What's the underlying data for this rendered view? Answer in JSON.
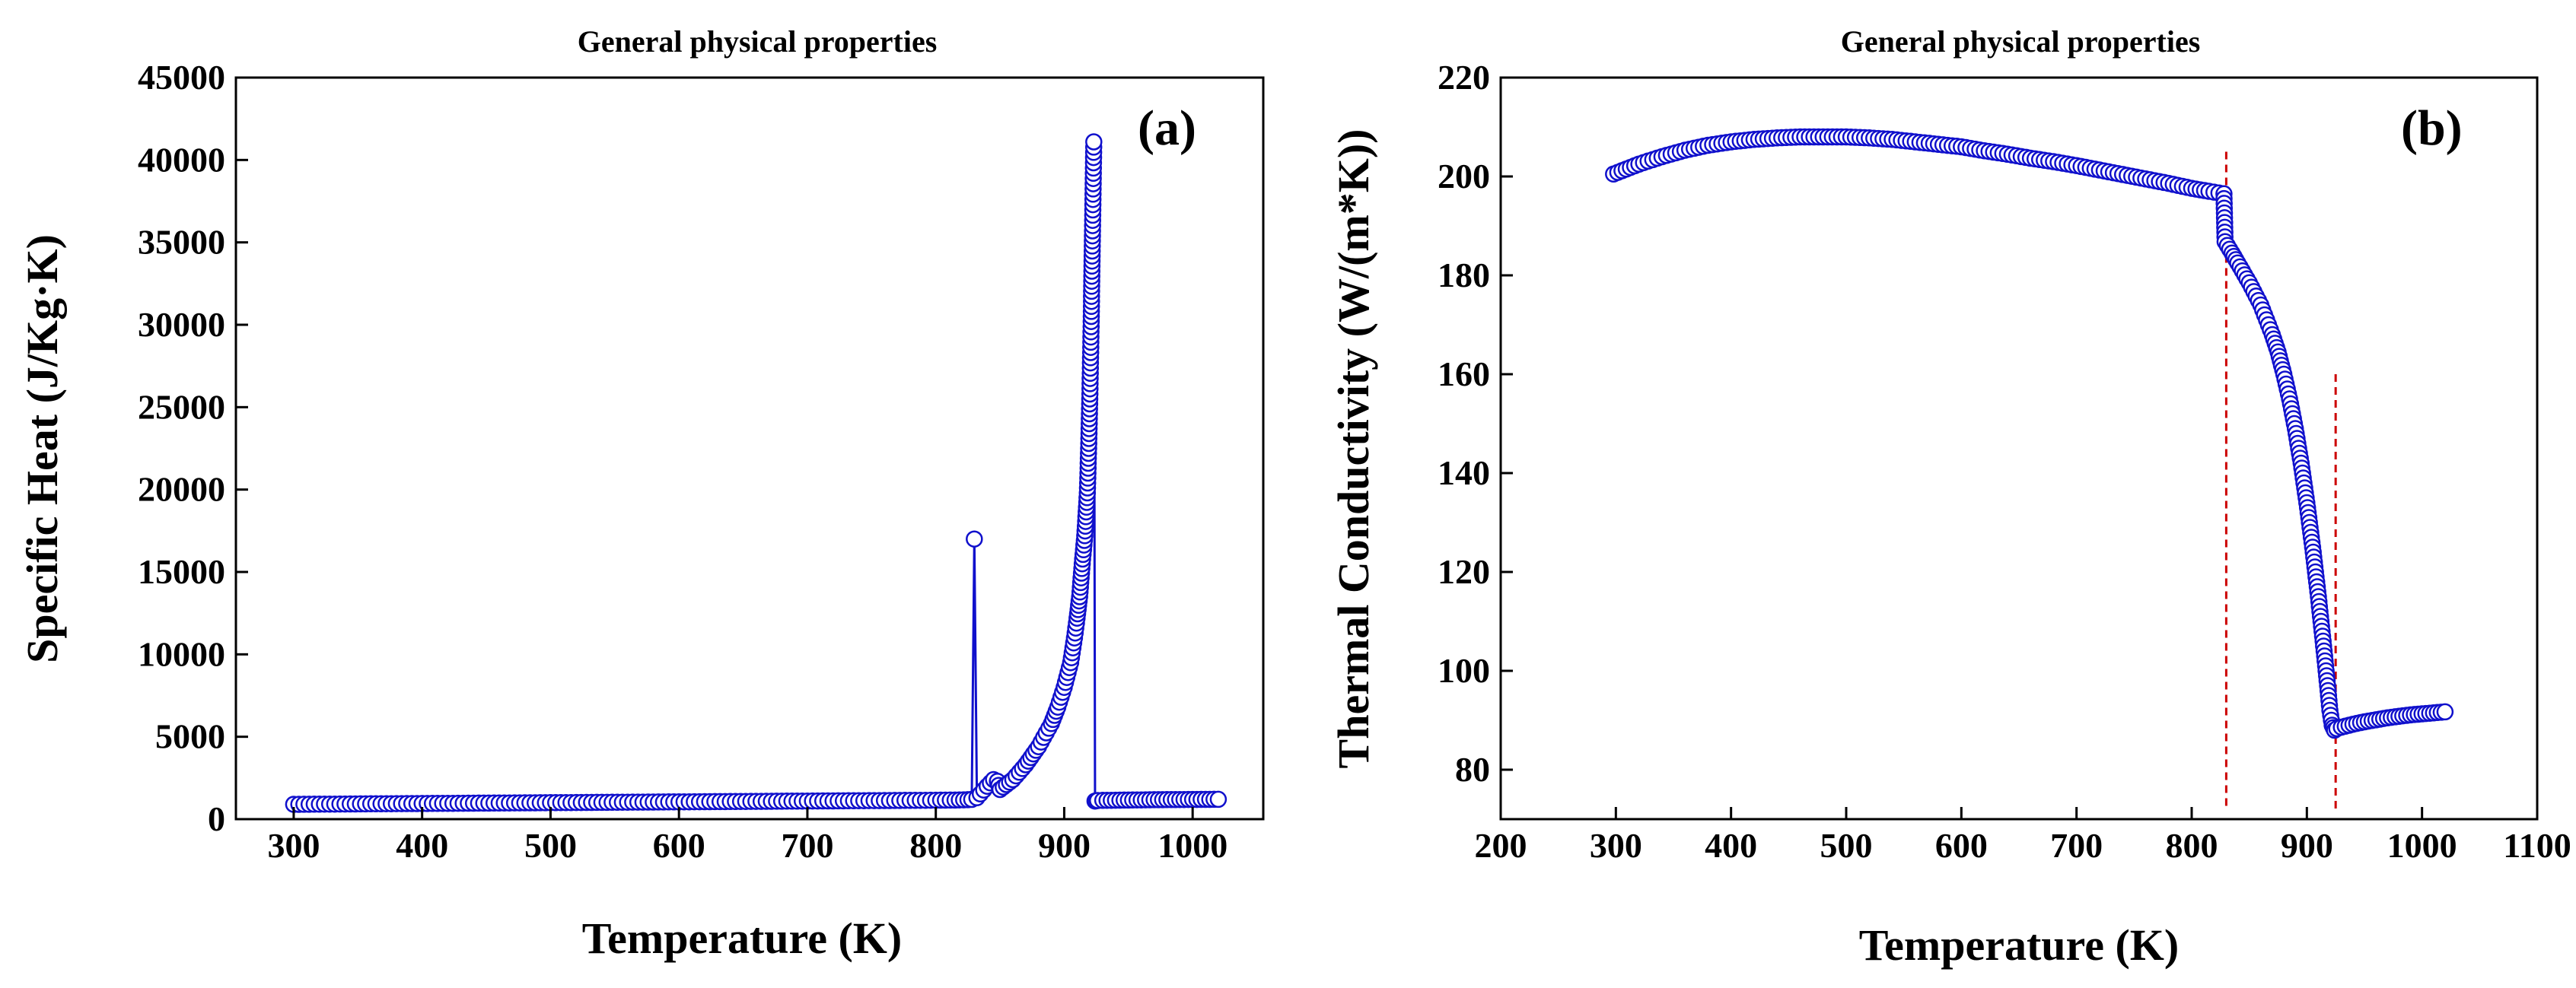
{
  "colors": {
    "series": "#1010cc",
    "dashed_line": "#cc0000",
    "axis": "#000000",
    "background": "#ffffff"
  },
  "chart_data": [
    {
      "type": "line",
      "panel_label": "(a)",
      "title": "General physical properties",
      "xlabel": "Temperature (K)",
      "ylabel": "Specific Heat (J/Kg·K)",
      "xlim": [
        255,
        1055
      ],
      "ylim": [
        0,
        45000
      ],
      "xticks": [
        300,
        400,
        500,
        600,
        700,
        800,
        900,
        1000
      ],
      "yticks": [
        0,
        5000,
        10000,
        15000,
        20000,
        25000,
        30000,
        35000,
        40000,
        45000
      ],
      "series": [
        {
          "name": "Specific heat",
          "marker": "open-circle",
          "x": [
            300,
            320,
            340,
            360,
            380,
            400,
            420,
            440,
            460,
            480,
            500,
            520,
            540,
            560,
            580,
            600,
            620,
            640,
            660,
            680,
            700,
            720,
            740,
            760,
            780,
            800,
            815,
            825,
            828,
            830,
            832,
            840,
            845,
            848,
            850,
            860,
            870,
            880,
            890,
            895,
            900,
            905,
            908,
            910,
            912,
            914,
            916,
            918,
            919,
            920,
            921,
            922,
            923,
            924,
            925,
            926,
            930,
            940,
            950,
            960,
            970,
            980,
            990,
            1000,
            1010,
            1020
          ],
          "values": [
            900,
            910,
            920,
            930,
            940,
            950,
            960,
            970,
            980,
            990,
            1000,
            1010,
            1020,
            1030,
            1040,
            1050,
            1060,
            1070,
            1080,
            1090,
            1100,
            1110,
            1120,
            1130,
            1140,
            1150,
            1160,
            1180,
            1200,
            17000,
            1300,
            2000,
            2400,
            2300,
            1800,
            2400,
            3300,
            4400,
            5800,
            6800,
            8000,
            9500,
            11000,
            12200,
            13500,
            15500,
            17200,
            19800,
            22500,
            25800,
            30200,
            35700,
            41100,
            1100,
            1120,
            1130,
            1140,
            1150,
            1160,
            1170,
            1180,
            1185,
            1190,
            1195,
            1200,
            1205
          ]
        }
      ]
    },
    {
      "type": "line",
      "panel_label": "(b)",
      "title": "General physical properties",
      "xlabel": "Temperature (K)",
      "ylabel": "Thermal Conductivity (W/(m*K))",
      "xlim": [
        200,
        1100
      ],
      "ylim": [
        70,
        220
      ],
      "xticks": [
        200,
        300,
        400,
        500,
        600,
        700,
        800,
        900,
        1000,
        1100
      ],
      "yticks": [
        80,
        100,
        120,
        140,
        160,
        180,
        200,
        220
      ],
      "reference_lines_x": [
        830,
        925
      ],
      "series": [
        {
          "name": "Thermal conductivity",
          "marker": "open-circle",
          "x": [
            298,
            320,
            340,
            360,
            380,
            400,
            420,
            440,
            460,
            480,
            500,
            520,
            540,
            560,
            580,
            600,
            620,
            640,
            660,
            680,
            700,
            720,
            740,
            760,
            780,
            800,
            815,
            828,
            829,
            835,
            840,
            850,
            860,
            870,
            875,
            880,
            885,
            890,
            895,
            900,
            905,
            910,
            915,
            918,
            920,
            922,
            924,
            926,
            930,
            940,
            950,
            960,
            970,
            980,
            990,
            1000,
            1010,
            1020
          ],
          "values": [
            200.5,
            202.5,
            204,
            205.3,
            206.3,
            207,
            207.5,
            207.8,
            208,
            208,
            208,
            207.8,
            207.5,
            207,
            206.5,
            206,
            205.2,
            204.5,
            203.7,
            203,
            202.2,
            201.3,
            200.4,
            199.5,
            198.6,
            197.6,
            197,
            196.5,
            186.8,
            184.5,
            182.5,
            178.5,
            174,
            168,
            164.5,
            160,
            155,
            149,
            142,
            134,
            125,
            115,
            104,
            97,
            92,
            89,
            88,
            88.3,
            88.6,
            89.2,
            89.7,
            90.1,
            90.5,
            90.8,
            91.1,
            91.3,
            91.5,
            91.7
          ]
        }
      ]
    }
  ]
}
